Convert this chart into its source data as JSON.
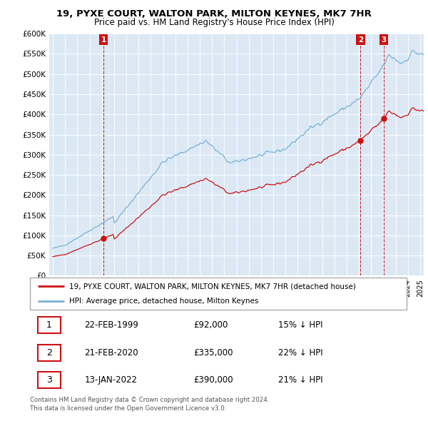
{
  "title": "19, PYXE COURT, WALTON PARK, MILTON KEYNES, MK7 7HR",
  "subtitle": "Price paid vs. HM Land Registry's House Price Index (HPI)",
  "ylim": [
    0,
    600000
  ],
  "yticks": [
    0,
    50000,
    100000,
    150000,
    200000,
    250000,
    300000,
    350000,
    400000,
    450000,
    500000,
    550000,
    600000
  ],
  "ytick_labels": [
    "£0",
    "£50K",
    "£100K",
    "£150K",
    "£200K",
    "£250K",
    "£300K",
    "£350K",
    "£400K",
    "£450K",
    "£500K",
    "£550K",
    "£600K"
  ],
  "hpi_color": "#7ab0d4",
  "price_color": "#cc1111",
  "background_color": "#dce9f5",
  "grid_color": "#ffffff",
  "transactions": [
    {
      "label": "1",
      "date_num": 1999.13,
      "price": 92000
    },
    {
      "label": "2",
      "date_num": 2020.13,
      "price": 335000
    },
    {
      "label": "3",
      "date_num": 2022.04,
      "price": 390000
    }
  ],
  "transaction_table": [
    {
      "num": "1",
      "date": "22-FEB-1999",
      "price": "£92,000",
      "hpi": "15% ↓ HPI"
    },
    {
      "num": "2",
      "date": "21-FEB-2020",
      "price": "£335,000",
      "hpi": "22% ↓ HPI"
    },
    {
      "num": "3",
      "date": "13-JAN-2022",
      "price": "£390,000",
      "hpi": "21% ↓ HPI"
    }
  ],
  "legend_line1": "19, PYXE COURT, WALTON PARK, MILTON KEYNES, MK7 7HR (detached house)",
  "legend_line2": "HPI: Average price, detached house, Milton Keynes",
  "footnote": "Contains HM Land Registry data © Crown copyright and database right 2024.\nThis data is licensed under the Open Government Licence v3.0.",
  "xlim_start": 1994.7,
  "xlim_end": 2025.3
}
